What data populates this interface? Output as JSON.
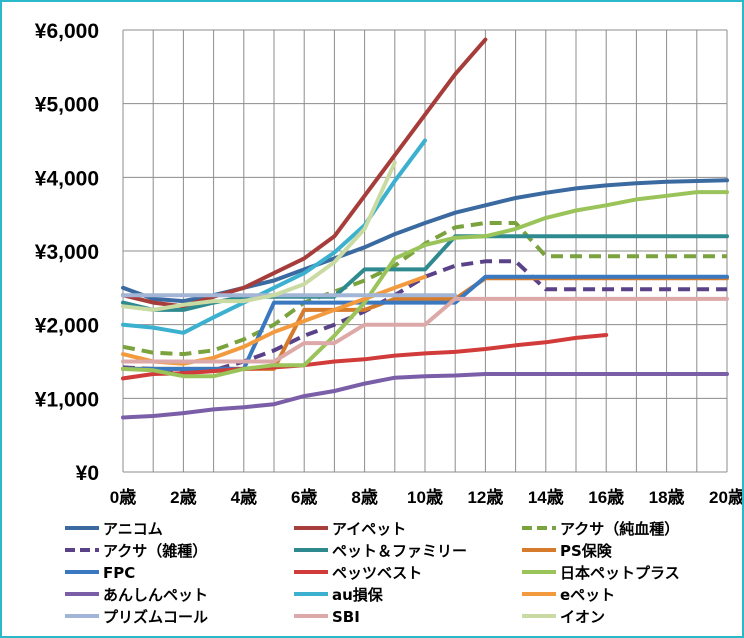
{
  "chart_data": {
    "type": "line",
    "x": [
      0,
      1,
      2,
      3,
      4,
      5,
      6,
      7,
      8,
      9,
      10,
      11,
      12,
      13,
      14,
      15,
      16,
      17,
      18,
      19,
      20
    ],
    "x_tick_labels": [
      "0歳",
      "2歳",
      "4歳",
      "6歳",
      "8歳",
      "10歳",
      "12歳",
      "14歳",
      "16歳",
      "18歳",
      "20歳"
    ],
    "y_tick_labels": [
      "¥0",
      "¥1,000",
      "¥2,000",
      "¥3,000",
      "¥4,000",
      "¥5,000",
      "¥6,000"
    ],
    "ylim": [
      0,
      6000
    ],
    "xlim": [
      0,
      20
    ],
    "grid": true,
    "legend_position": "bottom",
    "series": [
      {
        "name": "アニコム",
        "color": "#3b6aa0",
        "dash": false,
        "points": [
          [
            0,
            2500
          ],
          [
            1,
            2350
          ],
          [
            2,
            2320
          ],
          [
            3,
            2400
          ],
          [
            4,
            2500
          ],
          [
            5,
            2600
          ],
          [
            6,
            2750
          ],
          [
            7,
            2900
          ],
          [
            8,
            3050
          ],
          [
            9,
            3230
          ],
          [
            10,
            3380
          ],
          [
            11,
            3520
          ],
          [
            12,
            3620
          ],
          [
            13,
            3720
          ],
          [
            14,
            3790
          ],
          [
            15,
            3850
          ],
          [
            16,
            3890
          ],
          [
            17,
            3920
          ],
          [
            18,
            3940
          ],
          [
            19,
            3950
          ],
          [
            20,
            3960
          ]
        ]
      },
      {
        "name": "アイペット",
        "color": "#a63d3a",
        "dash": false,
        "points": [
          [
            0,
            2400
          ],
          [
            1,
            2300
          ],
          [
            2,
            2250
          ],
          [
            3,
            2380
          ],
          [
            4,
            2500
          ],
          [
            5,
            2700
          ],
          [
            6,
            2900
          ],
          [
            7,
            3200
          ],
          [
            8,
            3750
          ],
          [
            9,
            4300
          ],
          [
            10,
            4850
          ],
          [
            11,
            5400
          ],
          [
            12,
            5870
          ]
        ]
      },
      {
        "name": "アクサ（純血種）",
        "color": "#7aa23d",
        "dash": true,
        "points": [
          [
            0,
            1700
          ],
          [
            1,
            1620
          ],
          [
            2,
            1600
          ],
          [
            3,
            1650
          ],
          [
            4,
            1800
          ],
          [
            5,
            2000
          ],
          [
            6,
            2300
          ],
          [
            7,
            2450
          ],
          [
            8,
            2600
          ],
          [
            9,
            2800
          ],
          [
            10,
            3100
          ],
          [
            11,
            3320
          ],
          [
            12,
            3380
          ],
          [
            13,
            3380
          ],
          [
            14,
            2930
          ],
          [
            15,
            2930
          ],
          [
            16,
            2930
          ],
          [
            17,
            2930
          ],
          [
            18,
            2930
          ],
          [
            19,
            2930
          ],
          [
            20,
            2930
          ]
        ]
      },
      {
        "name": "アクサ（雑種）",
        "color": "#5a4289",
        "dash": true,
        "points": [
          [
            0,
            1420
          ],
          [
            1,
            1400
          ],
          [
            2,
            1380
          ],
          [
            3,
            1380
          ],
          [
            4,
            1500
          ],
          [
            5,
            1650
          ],
          [
            6,
            1850
          ],
          [
            7,
            2000
          ],
          [
            8,
            2180
          ],
          [
            9,
            2400
          ],
          [
            10,
            2650
          ],
          [
            11,
            2800
          ],
          [
            12,
            2860
          ],
          [
            13,
            2860
          ],
          [
            14,
            2480
          ],
          [
            15,
            2480
          ],
          [
            16,
            2480
          ],
          [
            17,
            2480
          ],
          [
            18,
            2480
          ],
          [
            19,
            2480
          ],
          [
            20,
            2480
          ]
        ]
      },
      {
        "name": "ペット＆ファミリー",
        "color": "#2f8a90",
        "dash": false,
        "points": [
          [
            0,
            2300
          ],
          [
            1,
            2200
          ],
          [
            2,
            2200
          ],
          [
            3,
            2300
          ],
          [
            4,
            2380
          ],
          [
            5,
            2380
          ],
          [
            6,
            2380
          ],
          [
            7,
            2380
          ],
          [
            8,
            2750
          ],
          [
            9,
            2750
          ],
          [
            10,
            2750
          ],
          [
            11,
            3200
          ],
          [
            12,
            3200
          ],
          [
            13,
            3200
          ],
          [
            14,
            3200
          ],
          [
            15,
            3200
          ],
          [
            16,
            3200
          ],
          [
            17,
            3200
          ],
          [
            18,
            3200
          ],
          [
            19,
            3200
          ],
          [
            20,
            3200
          ]
        ]
      },
      {
        "name": "PS保険",
        "color": "#d67b2c",
        "dash": false,
        "points": [
          [
            0,
            1400
          ],
          [
            1,
            1400
          ],
          [
            2,
            1400
          ],
          [
            3,
            1400
          ],
          [
            4,
            1400
          ],
          [
            5,
            1400
          ],
          [
            6,
            2200
          ],
          [
            7,
            2200
          ],
          [
            8,
            2200
          ],
          [
            9,
            2350
          ],
          [
            10,
            2350
          ],
          [
            11,
            2350
          ],
          [
            12,
            2630
          ],
          [
            13,
            2630
          ],
          [
            14,
            2630
          ],
          [
            15,
            2630
          ],
          [
            16,
            2630
          ],
          [
            17,
            2630
          ],
          [
            18,
            2630
          ],
          [
            19,
            2630
          ],
          [
            20,
            2630
          ]
        ]
      },
      {
        "name": "FPC",
        "color": "#3a78c0",
        "dash": false,
        "points": [
          [
            0,
            1400
          ],
          [
            1,
            1400
          ],
          [
            2,
            1400
          ],
          [
            3,
            1400
          ],
          [
            4,
            1400
          ],
          [
            5,
            2300
          ],
          [
            6,
            2300
          ],
          [
            7,
            2300
          ],
          [
            8,
            2300
          ],
          [
            9,
            2300
          ],
          [
            10,
            2300
          ],
          [
            11,
            2300
          ],
          [
            12,
            2650
          ],
          [
            13,
            2650
          ],
          [
            14,
            2650
          ],
          [
            15,
            2650
          ],
          [
            16,
            2650
          ],
          [
            17,
            2650
          ],
          [
            18,
            2650
          ],
          [
            19,
            2650
          ],
          [
            20,
            2650
          ]
        ]
      },
      {
        "name": "ペッツベスト",
        "color": "#d13c3a",
        "dash": false,
        "points": [
          [
            0,
            1270
          ],
          [
            1,
            1330
          ],
          [
            2,
            1340
          ],
          [
            3,
            1370
          ],
          [
            4,
            1400
          ],
          [
            5,
            1420
          ],
          [
            6,
            1450
          ],
          [
            7,
            1500
          ],
          [
            8,
            1530
          ],
          [
            9,
            1580
          ],
          [
            10,
            1610
          ],
          [
            11,
            1630
          ],
          [
            12,
            1670
          ],
          [
            13,
            1720
          ],
          [
            14,
            1760
          ],
          [
            15,
            1820
          ],
          [
            16,
            1860
          ]
        ]
      },
      {
        "name": "日本ペットプラス",
        "color": "#9ac45a",
        "dash": false,
        "points": [
          [
            0,
            1400
          ],
          [
            1,
            1380
          ],
          [
            2,
            1300
          ],
          [
            3,
            1300
          ],
          [
            4,
            1400
          ],
          [
            5,
            1450
          ],
          [
            6,
            1450
          ],
          [
            7,
            1850
          ],
          [
            8,
            2300
          ],
          [
            9,
            2900
          ],
          [
            10,
            3080
          ],
          [
            11,
            3180
          ],
          [
            12,
            3200
          ],
          [
            13,
            3300
          ],
          [
            14,
            3450
          ],
          [
            15,
            3550
          ],
          [
            16,
            3620
          ],
          [
            17,
            3700
          ],
          [
            18,
            3750
          ],
          [
            19,
            3800
          ],
          [
            20,
            3800
          ]
        ]
      },
      {
        "name": "あんしんペット",
        "color": "#7b5ea8",
        "dash": false,
        "points": [
          [
            0,
            740
          ],
          [
            1,
            760
          ],
          [
            2,
            800
          ],
          [
            3,
            850
          ],
          [
            4,
            880
          ],
          [
            5,
            920
          ],
          [
            6,
            1030
          ],
          [
            7,
            1100
          ],
          [
            8,
            1200
          ],
          [
            9,
            1280
          ],
          [
            10,
            1300
          ],
          [
            11,
            1310
          ],
          [
            12,
            1330
          ],
          [
            13,
            1330
          ],
          [
            14,
            1330
          ],
          [
            15,
            1330
          ],
          [
            16,
            1330
          ],
          [
            17,
            1330
          ],
          [
            18,
            1330
          ],
          [
            19,
            1330
          ],
          [
            20,
            1330
          ]
        ]
      },
      {
        "name": "au損保",
        "color": "#3bb1cf",
        "dash": false,
        "points": [
          [
            0,
            2000
          ],
          [
            1,
            1960
          ],
          [
            2,
            1890
          ],
          [
            3,
            2100
          ],
          [
            4,
            2300
          ],
          [
            5,
            2500
          ],
          [
            6,
            2700
          ],
          [
            7,
            2980
          ],
          [
            8,
            3350
          ],
          [
            9,
            3950
          ],
          [
            10,
            4500
          ]
        ]
      },
      {
        "name": "eペット",
        "color": "#f29a3d",
        "dash": false,
        "points": [
          [
            0,
            1600
          ],
          [
            1,
            1500
          ],
          [
            2,
            1470
          ],
          [
            3,
            1550
          ],
          [
            4,
            1700
          ],
          [
            5,
            1900
          ],
          [
            6,
            2050
          ],
          [
            7,
            2200
          ],
          [
            8,
            2350
          ],
          [
            9,
            2500
          ],
          [
            10,
            2650
          ]
        ]
      },
      {
        "name": "プリズムコール",
        "color": "#a3b5d6",
        "dash": false,
        "points": [
          [
            0,
            2400
          ],
          [
            1,
            2400
          ],
          [
            2,
            2400
          ],
          [
            3,
            2400
          ],
          [
            4,
            2400
          ],
          [
            5,
            2400
          ],
          [
            6,
            2400
          ],
          [
            7,
            2400
          ],
          [
            8,
            2400
          ],
          [
            9,
            2400
          ],
          [
            10,
            2400
          ],
          [
            11,
            2400
          ]
        ]
      },
      {
        "name": "SBI",
        "color": "#dda8a8",
        "dash": false,
        "points": [
          [
            0,
            1500
          ],
          [
            1,
            1500
          ],
          [
            2,
            1500
          ],
          [
            3,
            1500
          ],
          [
            4,
            1500
          ],
          [
            5,
            1500
          ],
          [
            6,
            1750
          ],
          [
            7,
            1750
          ],
          [
            8,
            2000
          ],
          [
            9,
            2000
          ],
          [
            10,
            2000
          ],
          [
            11,
            2350
          ],
          [
            12,
            2350
          ],
          [
            13,
            2350
          ],
          [
            14,
            2350
          ],
          [
            15,
            2350
          ],
          [
            16,
            2350
          ],
          [
            17,
            2350
          ],
          [
            18,
            2350
          ],
          [
            19,
            2350
          ],
          [
            20,
            2350
          ]
        ]
      },
      {
        "name": "イオン",
        "color": "#c9dba2",
        "dash": false,
        "points": [
          [
            0,
            2250
          ],
          [
            1,
            2200
          ],
          [
            2,
            2270
          ],
          [
            3,
            2320
          ],
          [
            4,
            2320
          ],
          [
            5,
            2400
          ],
          [
            6,
            2550
          ],
          [
            7,
            2850
          ],
          [
            8,
            3300
          ],
          [
            9,
            4200
          ]
        ]
      }
    ]
  }
}
